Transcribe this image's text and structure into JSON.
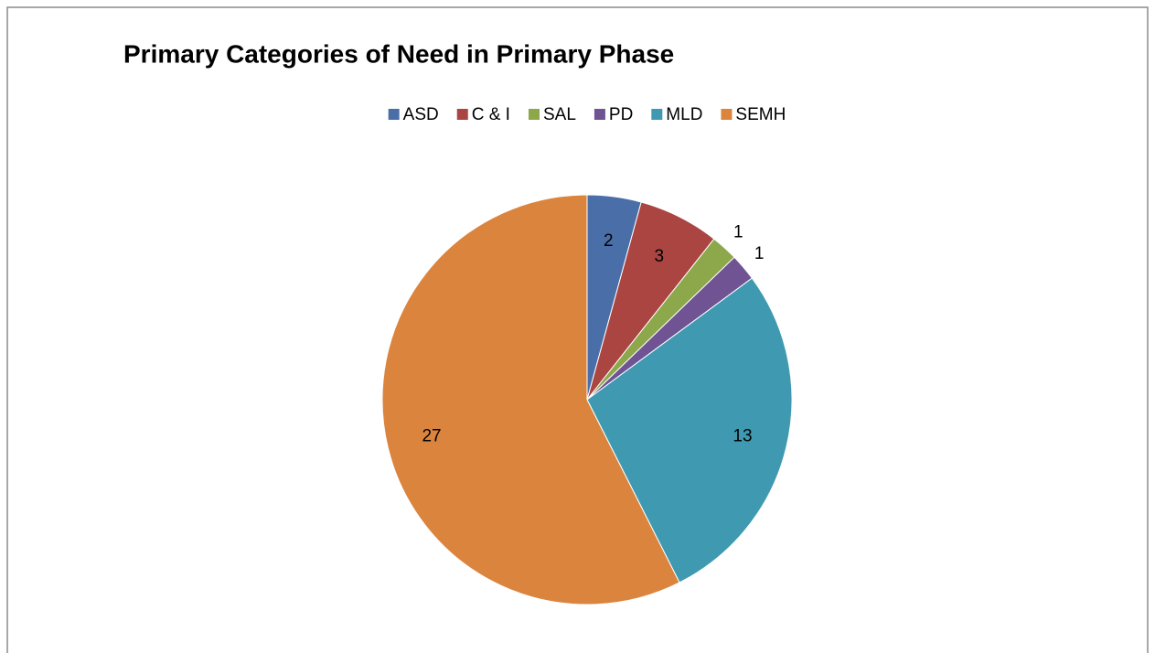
{
  "chart_data": {
    "type": "pie",
    "title": "Primary Categories of Need in Primary Phase",
    "categories": [
      "ASD",
      "C & I",
      "SAL",
      "PD",
      "MLD",
      "SEMH"
    ],
    "values": [
      2,
      3,
      1,
      1,
      13,
      27
    ],
    "colors": [
      "#4a6fa8",
      "#aa4542",
      "#8da74b",
      "#6f5393",
      "#3f9ab1",
      "#db843e"
    ],
    "legend": "top"
  }
}
